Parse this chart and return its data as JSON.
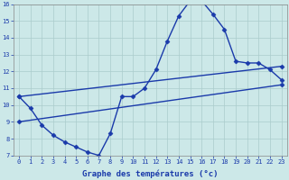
{
  "xlabel": "Graphe des températures (°c)",
  "xlim": [
    -0.5,
    23.5
  ],
  "ylim": [
    7,
    16
  ],
  "yticks": [
    7,
    8,
    9,
    10,
    11,
    12,
    13,
    14,
    15,
    16
  ],
  "xticks": [
    0,
    1,
    2,
    3,
    4,
    5,
    6,
    7,
    8,
    9,
    10,
    11,
    12,
    13,
    14,
    15,
    16,
    17,
    18,
    19,
    20,
    21,
    22,
    23
  ],
  "background_color": "#cce8e8",
  "grid_color": "#aacccc",
  "line_color": "#1a3aaa",
  "line_width": 1.0,
  "marker": "D",
  "marker_size": 2.5,
  "temp_x": [
    0,
    1,
    2,
    3,
    4,
    5,
    6,
    7,
    8,
    9,
    10,
    11,
    12,
    13,
    14,
    15,
    16,
    17,
    18,
    19,
    20,
    21,
    22,
    23
  ],
  "temp_y": [
    10.5,
    9.8,
    8.8,
    8.2,
    7.8,
    7.5,
    7.2,
    7.0,
    8.3,
    10.5,
    10.5,
    11.0,
    12.1,
    13.8,
    15.3,
    16.2,
    16.2,
    15.4,
    14.5,
    12.6,
    12.5,
    12.5,
    12.1,
    11.5
  ],
  "line2_x": [
    0,
    23
  ],
  "line2_y": [
    10.5,
    12.3
  ],
  "line3_x": [
    0,
    23
  ],
  "line3_y": [
    9.0,
    11.2
  ]
}
